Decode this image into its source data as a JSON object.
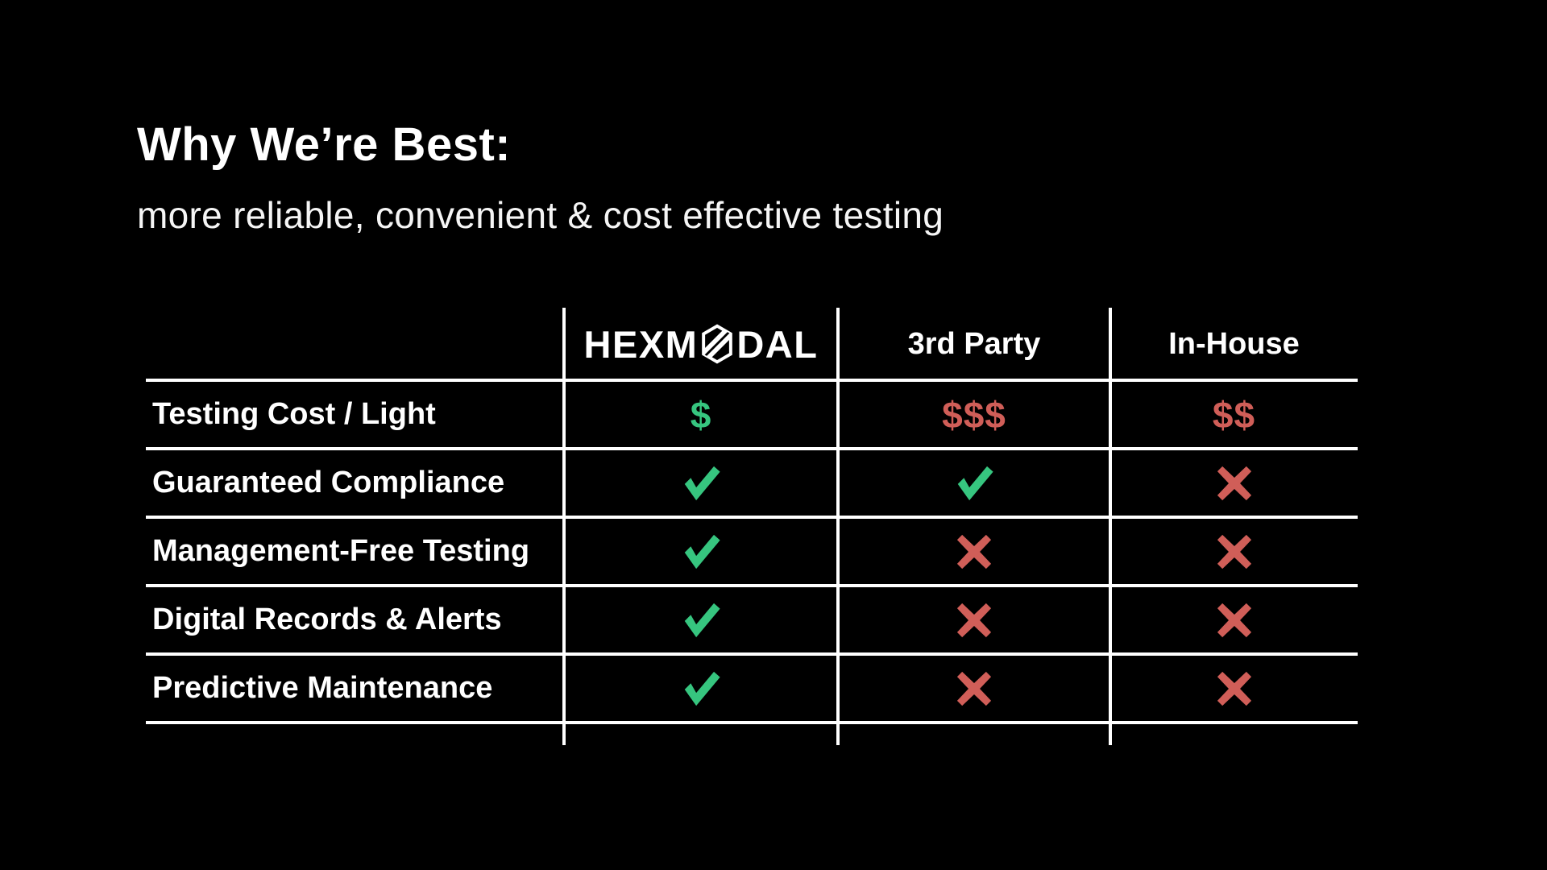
{
  "slide": {
    "title": "Why We’re Best:",
    "subtitle": "more reliable, convenient & cost effective testing"
  },
  "table": {
    "brand": {
      "name": "HEXMODAL",
      "wordmark_left": "HEXM",
      "wordmark_right": "DAL",
      "logo": "hexagon-slash-icon"
    },
    "columns": [
      {
        "label": ""
      },
      {
        "label": "HEXMODAL"
      },
      {
        "label": "3rd Party"
      },
      {
        "label": "In-House"
      }
    ],
    "rows": [
      {
        "label": "Testing Cost / Light",
        "cells": [
          {
            "kind": "dollars",
            "text": "$",
            "sentiment": "positive"
          },
          {
            "kind": "dollars",
            "text": "$$$",
            "sentiment": "negative"
          },
          {
            "kind": "dollars",
            "text": "$$",
            "sentiment": "negative"
          }
        ]
      },
      {
        "label": "Guaranteed Compliance",
        "cells": [
          {
            "kind": "check",
            "sentiment": "positive"
          },
          {
            "kind": "check",
            "sentiment": "positive"
          },
          {
            "kind": "cross",
            "sentiment": "negative"
          }
        ]
      },
      {
        "label": "Management-Free Testing",
        "cells": [
          {
            "kind": "check",
            "sentiment": "positive"
          },
          {
            "kind": "cross",
            "sentiment": "negative"
          },
          {
            "kind": "cross",
            "sentiment": "negative"
          }
        ]
      },
      {
        "label": "Digital Records & Alerts",
        "cells": [
          {
            "kind": "check",
            "sentiment": "positive"
          },
          {
            "kind": "cross",
            "sentiment": "negative"
          },
          {
            "kind": "cross",
            "sentiment": "negative"
          }
        ]
      },
      {
        "label": "Predictive Maintenance",
        "cells": [
          {
            "kind": "check",
            "sentiment": "positive"
          },
          {
            "kind": "cross",
            "sentiment": "negative"
          },
          {
            "kind": "cross",
            "sentiment": "negative"
          }
        ]
      }
    ]
  },
  "colors": {
    "background": "#000000",
    "text": "#ffffff",
    "line": "#ffffff",
    "positive": "#36c57f",
    "negative": "#d05e58"
  },
  "chart_data": {
    "type": "table",
    "title": "Why We’re Best:",
    "subtitle": "more reliable, convenient & cost effective testing",
    "columns": [
      "",
      "HEXMODAL",
      "3rd Party",
      "In-House"
    ],
    "rows": [
      [
        "Testing Cost / Light",
        "$",
        "$$$",
        "$$"
      ],
      [
        "Guaranteed Compliance",
        "yes",
        "yes",
        "no"
      ],
      [
        "Management-Free Testing",
        "yes",
        "no",
        "no"
      ],
      [
        "Digital Records & Alerts",
        "yes",
        "no",
        "no"
      ],
      [
        "Predictive Maintenance",
        "yes",
        "no",
        "no"
      ]
    ],
    "legend": "green check / green $ = favorable (Hexmodal); red X / red $$$ = unfavorable",
    "grid": "white rules between rows and columns, no outer border"
  }
}
